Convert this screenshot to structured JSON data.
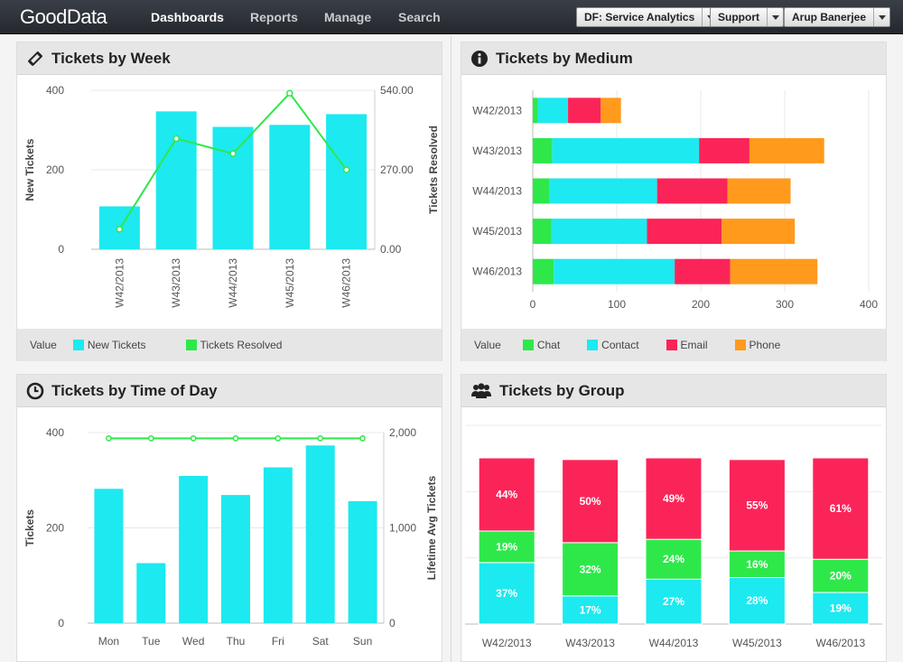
{
  "brand": "GoodData",
  "nav": [
    "Dashboards",
    "Reports",
    "Manage",
    "Search"
  ],
  "project_select": "DF: Service Analytics",
  "support_label": "Support",
  "user_label": "Arup Banerjee",
  "colors": {
    "cyan": "#1de9f0",
    "green": "#2ee84a",
    "red": "#fb2458",
    "orange": "#ff9a1c"
  },
  "panels": {
    "week": {
      "title": "Tickets by Week",
      "legend_label": "Value",
      "legend": [
        "New Tickets",
        "Tickets Resolved"
      ]
    },
    "medium": {
      "title": "Tickets by Medium",
      "legend_label": "Value",
      "legend": [
        "Chat",
        "Contact",
        "Email",
        "Phone"
      ]
    },
    "time": {
      "title": "Tickets by Time of Day"
    },
    "group": {
      "title": "Tickets by Group"
    }
  },
  "chart_data": [
    {
      "type": "bar",
      "title": "Tickets by Week",
      "categories": [
        "W42/2013",
        "W43/2013",
        "W44/2013",
        "W45/2013",
        "W46/2013"
      ],
      "ylabel": "New Tickets",
      "y2label": "Tickets Resolved",
      "ylim": [
        0,
        400
      ],
      "y2lim": [
        0,
        540
      ],
      "yticks": [
        "0",
        "200",
        "400"
      ],
      "y2ticks": [
        "0.00",
        "270.00",
        "540.00"
      ],
      "series": [
        {
          "name": "New Tickets",
          "values": [
            108,
            347,
            308,
            313,
            340
          ]
        },
        {
          "name": "Tickets Resolved",
          "axis": "right",
          "line": true,
          "values": [
            68,
            376,
            325,
            530,
            270
          ]
        }
      ]
    },
    {
      "type": "bar",
      "orientation": "horizontal",
      "stacked": true,
      "title": "Tickets by Medium",
      "categories": [
        "W42/2013",
        "W43/2013",
        "W44/2013",
        "W45/2013",
        "W46/2013"
      ],
      "xlim": [
        0,
        400
      ],
      "xticks": [
        "0",
        "100",
        "200",
        "300",
        "400"
      ],
      "series": [
        {
          "name": "Chat",
          "values": [
            6,
            23,
            20,
            22,
            25
          ]
        },
        {
          "name": "Contact",
          "values": [
            36,
            175,
            128,
            114,
            144
          ]
        },
        {
          "name": "Email",
          "values": [
            39,
            60,
            84,
            89,
            66
          ]
        },
        {
          "name": "Phone",
          "values": [
            24,
            89,
            75,
            87,
            104
          ]
        }
      ]
    },
    {
      "type": "bar",
      "title": "Tickets by Time of Day",
      "categories": [
        "Mon",
        "Tue",
        "Wed",
        "Thu",
        "Fri",
        "Sat",
        "Sun"
      ],
      "ylabel": "Tickets",
      "y2label": "Lifetime Avg Tickets",
      "ylim": [
        0,
        400
      ],
      "y2lim": [
        0,
        2000
      ],
      "yticks": [
        "0",
        "200",
        "400"
      ],
      "y2ticks": [
        "0",
        "1,000",
        "2,000"
      ],
      "series": [
        {
          "name": "Tickets",
          "values": [
            282,
            126,
            309,
            269,
            327,
            373,
            256
          ]
        },
        {
          "name": "Lifetime Avg Tickets",
          "axis": "right",
          "line": true,
          "values": [
            1940,
            1940,
            1940,
            1940,
            1940,
            1940,
            1940
          ]
        }
      ]
    },
    {
      "type": "bar",
      "stacked": true,
      "percent": true,
      "title": "Tickets by Group",
      "categories": [
        "W42/2013",
        "W43/2013",
        "W44/2013",
        "W45/2013",
        "W46/2013"
      ],
      "series": [
        {
          "color": "cyan",
          "values": [
            37,
            17,
            27,
            28,
            19
          ],
          "labels": [
            "37%",
            "17%",
            "27%",
            "28%",
            "19%"
          ]
        },
        {
          "color": "green",
          "values": [
            19,
            32,
            24,
            16,
            20
          ],
          "labels": [
            "19%",
            "32%",
            "24%",
            "16%",
            "20%"
          ]
        },
        {
          "color": "red",
          "values": [
            44,
            50,
            49,
            55,
            61
          ],
          "labels": [
            "44%",
            "50%",
            "49%",
            "55%",
            "61%"
          ]
        }
      ]
    }
  ]
}
